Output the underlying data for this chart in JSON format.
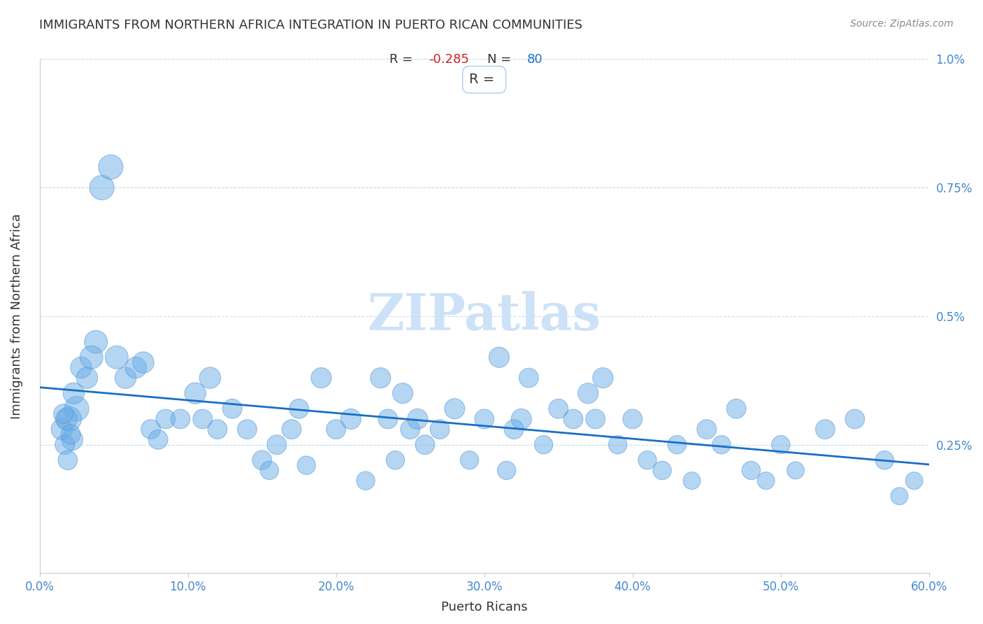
{
  "title": "IMMIGRANTS FROM NORTHERN AFRICA INTEGRATION IN PUERTO RICAN COMMUNITIES",
  "source": "Source: ZipAtlas.com",
  "xlabel": "Puerto Ricans",
  "ylabel": "Immigrants from Northern Africa",
  "xlim": [
    0.0,
    0.6
  ],
  "ylim": [
    0.0,
    0.01
  ],
  "xtick_labels": [
    "0.0%",
    "10.0%",
    "20.0%",
    "30.0%",
    "40.0%",
    "50.0%",
    "60.0%"
  ],
  "xtick_vals": [
    0.0,
    0.1,
    0.2,
    0.3,
    0.4,
    0.5,
    0.6
  ],
  "ytick_vals": [
    0.0,
    0.0025,
    0.005,
    0.0075,
    0.01
  ],
  "ytick_labels_right": [
    "",
    "0.25%",
    "0.5%",
    "0.75%",
    "1.0%"
  ],
  "R": -0.285,
  "N": 80,
  "scatter_color": "#6aaee8",
  "scatter_edge_color": "#5090d0",
  "scatter_alpha": 0.5,
  "line_color": "#1a6fc4",
  "title_color": "#333333",
  "axis_label_color": "#333333",
  "tick_label_color": "#4488cc",
  "stats_box_color": "#ffffff",
  "stats_border_color": "#aaccee",
  "watermark_color": "#c8dff5",
  "grid_color": "#c8ddf0",
  "background_color": "#ffffff",
  "x_data": [
    0.02,
    0.025,
    0.015,
    0.018,
    0.022,
    0.017,
    0.019,
    0.021,
    0.016,
    0.023,
    0.028,
    0.032,
    0.038,
    0.035,
    0.042,
    0.048,
    0.052,
    0.058,
    0.065,
    0.07,
    0.075,
    0.08,
    0.085,
    0.095,
    0.105,
    0.11,
    0.115,
    0.12,
    0.13,
    0.14,
    0.15,
    0.155,
    0.16,
    0.17,
    0.175,
    0.18,
    0.19,
    0.2,
    0.21,
    0.22,
    0.23,
    0.235,
    0.24,
    0.245,
    0.25,
    0.255,
    0.26,
    0.27,
    0.28,
    0.29,
    0.3,
    0.31,
    0.315,
    0.32,
    0.325,
    0.33,
    0.34,
    0.35,
    0.36,
    0.37,
    0.375,
    0.38,
    0.39,
    0.4,
    0.41,
    0.42,
    0.43,
    0.44,
    0.45,
    0.46,
    0.47,
    0.48,
    0.49,
    0.5,
    0.51,
    0.53,
    0.55,
    0.57,
    0.58,
    0.59
  ],
  "y_data": [
    0.003,
    0.0032,
    0.0028,
    0.003,
    0.0026,
    0.0025,
    0.0022,
    0.0027,
    0.0031,
    0.0035,
    0.004,
    0.0038,
    0.0045,
    0.0042,
    0.0075,
    0.0079,
    0.0042,
    0.0038,
    0.004,
    0.0041,
    0.0028,
    0.0026,
    0.003,
    0.003,
    0.0035,
    0.003,
    0.0038,
    0.0028,
    0.0032,
    0.0028,
    0.0022,
    0.002,
    0.0025,
    0.0028,
    0.0032,
    0.0021,
    0.0038,
    0.0028,
    0.003,
    0.0018,
    0.0038,
    0.003,
    0.0022,
    0.0035,
    0.0028,
    0.003,
    0.0025,
    0.0028,
    0.0032,
    0.0022,
    0.003,
    0.0042,
    0.002,
    0.0028,
    0.003,
    0.0038,
    0.0025,
    0.0032,
    0.003,
    0.0035,
    0.003,
    0.0038,
    0.0025,
    0.003,
    0.0022,
    0.002,
    0.0025,
    0.0018,
    0.0028,
    0.0025,
    0.0032,
    0.002,
    0.0018,
    0.0025,
    0.002,
    0.0028,
    0.003,
    0.0022,
    0.0015,
    0.0018
  ],
  "sizes": [
    80,
    80,
    60,
    60,
    60,
    50,
    50,
    50,
    50,
    60,
    60,
    60,
    70,
    70,
    80,
    80,
    70,
    60,
    60,
    60,
    50,
    50,
    50,
    50,
    60,
    50,
    60,
    50,
    50,
    50,
    50,
    45,
    50,
    50,
    50,
    45,
    55,
    50,
    55,
    45,
    55,
    50,
    45,
    55,
    50,
    55,
    50,
    50,
    55,
    45,
    50,
    55,
    45,
    50,
    55,
    50,
    45,
    50,
    50,
    55,
    50,
    55,
    45,
    50,
    45,
    45,
    45,
    40,
    50,
    45,
    50,
    45,
    40,
    45,
    40,
    50,
    50,
    45,
    40,
    40
  ]
}
